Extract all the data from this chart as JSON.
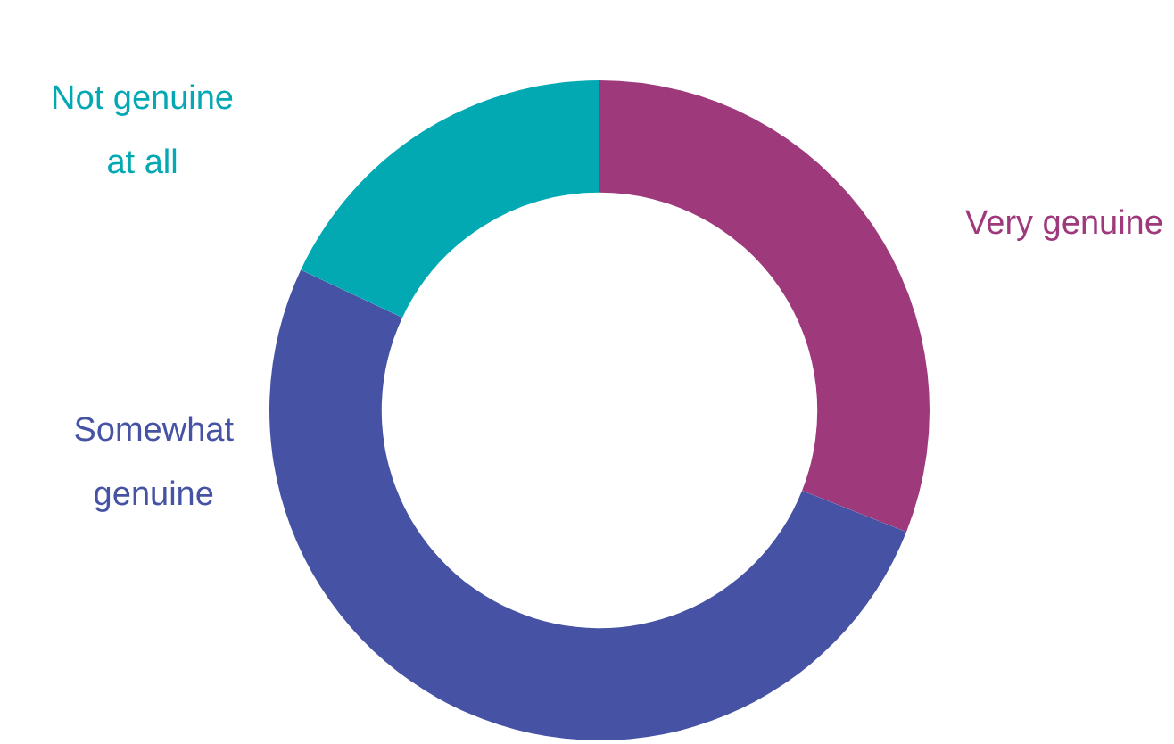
{
  "chart_data": {
    "type": "donut",
    "categories": [
      "Very genuine",
      "Somewhat genuine",
      "Not genuine at all"
    ],
    "values": [
      31,
      51,
      18
    ],
    "colors": [
      "#9e3a7c",
      "#4653a4",
      "#02a9b3"
    ]
  }
}
